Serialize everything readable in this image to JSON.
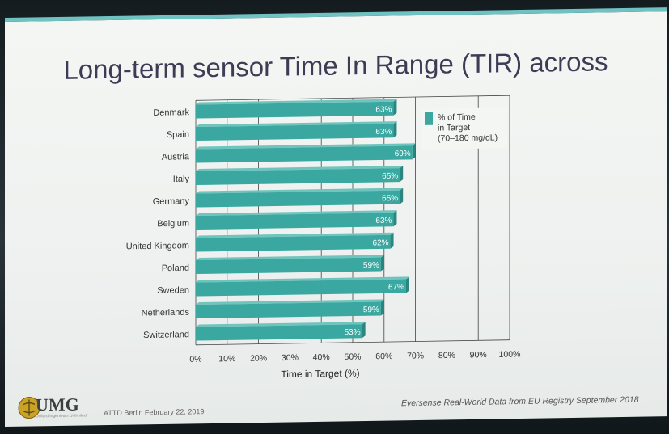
{
  "slide": {
    "title": "Long-term sensor Time In Range (TIR) across",
    "footer_left": "ATTD Berlin February 22, 2019",
    "footer_right": "Eversense Real-World Data from EU Registry September 2018",
    "logo_text": "UMG",
    "logo_subtext": "Dollard Ingenieurs Unlimited"
  },
  "colors": {
    "bar": "#3aa8a0",
    "bar_dark": "#2b8680",
    "bar_light": "#6fc5be",
    "accent": "#6fc2c2",
    "grid": "#444444",
    "title": "#3c3c55"
  },
  "chart_data": {
    "type": "bar",
    "orientation": "horizontal",
    "categories": [
      "Denmark",
      "Spain",
      "Austria",
      "Italy",
      "Germany",
      "Belgium",
      "United Kingdom",
      "Poland",
      "Sweden",
      "Netherlands",
      "Switzerland"
    ],
    "series": [
      {
        "name": "% of Time in Target (70–180 mg/dL)",
        "values": [
          63,
          63,
          69,
          65,
          65,
          63,
          62,
          59,
          67,
          59,
          53
        ],
        "labels": [
          "63%",
          "63%",
          "69%",
          "65%",
          "65%",
          "63%",
          "62%",
          "59%",
          "67%",
          "59%",
          "53%"
        ]
      }
    ],
    "xlabel": "Time in Target (%)",
    "xlim": [
      0,
      100
    ],
    "xticks": [
      "0%",
      "10%",
      "20%",
      "30%",
      "40%",
      "50%",
      "60%",
      "70%",
      "80%",
      "90%",
      "100%"
    ],
    "legend": {
      "lines": [
        "% of Time",
        "in Target",
        "(70–180 mg/dL)"
      ],
      "position": "top-right"
    },
    "grid": true
  }
}
